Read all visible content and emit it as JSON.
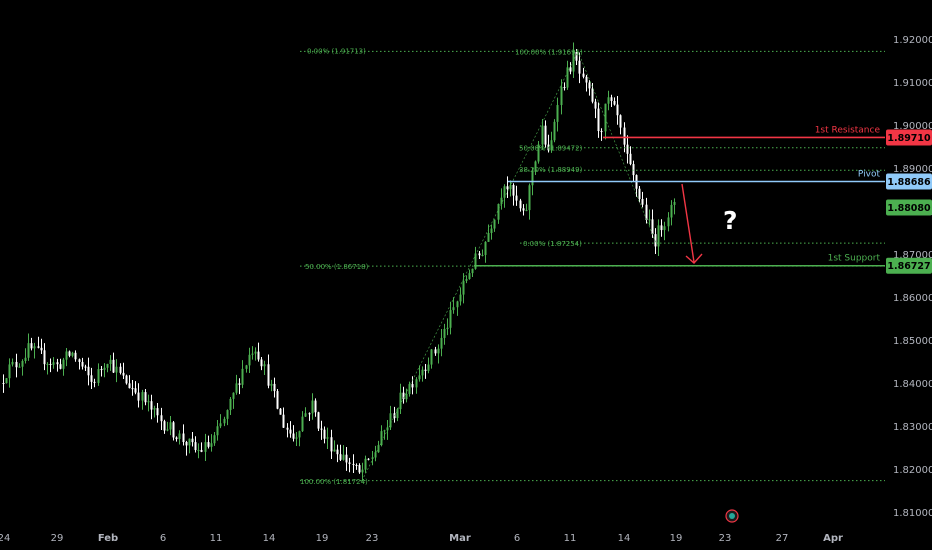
{
  "chart_data": {
    "type": "candlestick",
    "y_axis": {
      "range": [
        1.806,
        1.925
      ],
      "tick_labels": [
        "1.92000",
        "1.91000",
        "1.90000",
        "1.89000",
        "1.88000",
        "1.87000",
        "1.86000",
        "1.85000",
        "1.84000",
        "1.83000",
        "1.82000",
        "1.81000"
      ],
      "tick_values": [
        1.92,
        1.91,
        1.9,
        1.89,
        1.88,
        1.87,
        1.86,
        1.85,
        1.84,
        1.83,
        1.82,
        1.81
      ]
    },
    "x_axis": {
      "tick_labels": [
        "24",
        "29",
        "Feb",
        "6",
        "11",
        "14",
        "19",
        "23",
        "Mar",
        "6",
        "11",
        "14",
        "19",
        "23",
        "27",
        "Apr"
      ]
    },
    "levels": [
      {
        "name": "1st Resistance",
        "value_label": "1.89710",
        "value": 1.8971,
        "color": "#f23645"
      },
      {
        "name": "Pivot",
        "value_label": "1.88686",
        "value": 1.88686,
        "color": "#90caf9"
      },
      {
        "name": "1st Support",
        "value_label": "1.86727",
        "value": 1.86727,
        "color": "#4caf50"
      }
    ],
    "current_price": {
      "value_label": "1.88080",
      "value": 1.8808,
      "color": "#4caf50"
    },
    "fib_labels": [
      {
        "text": "0.00% (1.91713)",
        "value": 1.91713
      },
      {
        "text": "100.00% (1.91691)",
        "value": 1.91691
      },
      {
        "text": "50.00% (1.89472)",
        "value": 1.89472
      },
      {
        "text": "38.20% (1.88949)",
        "value": 1.88949
      },
      {
        "text": "0.00% (1.87254)",
        "value": 1.87254
      },
      {
        "text": "50.00% (1.86718)",
        "value": 1.86718
      },
      {
        "text": "100.00% (1.81724)",
        "value": 1.81724
      }
    ],
    "annotation": "?",
    "colors": {
      "up": "#4caf50",
      "down": "#ffffff",
      "fib": "#4caf50",
      "arrow": "#f23645",
      "background": "#000000"
    }
  }
}
